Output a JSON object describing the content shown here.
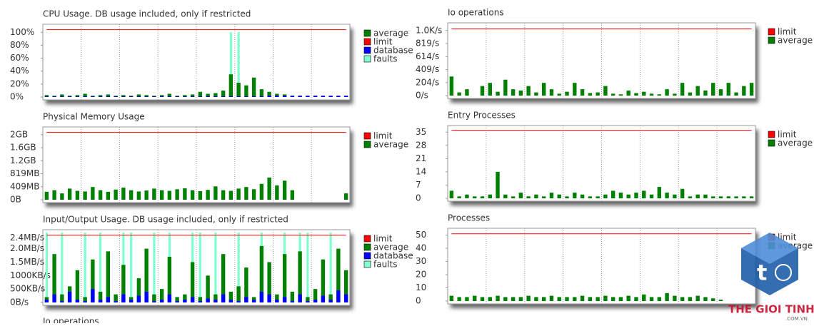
{
  "chart_data": [
    {
      "type": "bar",
      "title": "CPU Usage. DB usage included, only if restricted",
      "ylim": [
        0,
        108
      ],
      "yticks": [
        {
          "value": 0,
          "label": "0%"
        },
        {
          "value": 20,
          "label": "20%"
        },
        {
          "value": 40,
          "label": "40%"
        },
        {
          "value": 60,
          "label": "60%"
        },
        {
          "value": 80,
          "label": "80%"
        },
        {
          "value": 100,
          "label": "100%"
        }
      ],
      "grid": true,
      "series": [
        {
          "name": "average",
          "color": "#008000",
          "kind": "bar",
          "values": [
            3,
            2,
            4,
            2,
            3,
            5,
            2,
            3,
            4,
            2,
            3,
            2,
            4,
            3,
            2,
            3,
            5,
            2,
            3,
            4,
            8,
            5,
            6,
            10,
            35,
            22,
            18,
            30,
            12,
            8,
            5,
            4,
            2,
            2,
            1,
            2,
            1,
            1,
            1,
            1
          ]
        },
        {
          "name": "limit",
          "color": "#ff0000",
          "kind": "line",
          "values": [
            104,
            104,
            104,
            104,
            104,
            104,
            104,
            104,
            104,
            104,
            104,
            104,
            104,
            104,
            104,
            104,
            104,
            104,
            104,
            104,
            104,
            104,
            104,
            104,
            104,
            104,
            104,
            104,
            104,
            104,
            104,
            104,
            104,
            104,
            104,
            104,
            104,
            104,
            104,
            104
          ]
        },
        {
          "name": "database",
          "color": "#0000ff",
          "kind": "bar",
          "values": [
            1,
            1,
            1,
            1,
            1,
            1,
            1,
            1,
            1,
            1,
            1,
            1,
            1,
            1,
            1,
            1,
            1,
            1,
            1,
            1,
            1,
            1,
            1,
            1,
            1,
            1,
            1,
            1,
            1,
            2,
            2,
            2,
            2,
            2,
            2,
            2,
            2,
            2,
            2,
            2
          ]
        },
        {
          "name": "faults",
          "color": "#80ffd0",
          "kind": "spike",
          "values": [
            0,
            0,
            0,
            0,
            0,
            0,
            0,
            0,
            0,
            0,
            0,
            0,
            0,
            0,
            0,
            0,
            0,
            0,
            0,
            0,
            0,
            0,
            0,
            0,
            100,
            100,
            0,
            0,
            0,
            0,
            0,
            0,
            0,
            0,
            0,
            0,
            0,
            0,
            0,
            0
          ]
        }
      ]
    },
    {
      "type": "bar",
      "title": "Physical Memory Usage",
      "ylim": [
        0,
        2200
      ],
      "yticks": [
        {
          "value": 0,
          "label": "0B"
        },
        {
          "value": 409,
          "label": "409MB"
        },
        {
          "value": 819,
          "label": "819MB"
        },
        {
          "value": 1228,
          "label": "1.2GB"
        },
        {
          "value": 1638,
          "label": "1.6GB"
        },
        {
          "value": 2048,
          "label": "2GB"
        }
      ],
      "grid": true,
      "series": [
        {
          "name": "limit",
          "color": "#ff0000",
          "kind": "line",
          "values": [
            2120,
            2120,
            2120,
            2120,
            2120,
            2120,
            2120,
            2120,
            2120,
            2120,
            2120,
            2120,
            2120,
            2120,
            2120,
            2120,
            2120,
            2120,
            2120,
            2120,
            2120,
            2120,
            2120,
            2120,
            2120,
            2120,
            2120,
            2120,
            2120,
            2120,
            2120,
            2120,
            2120,
            2120,
            2120,
            2120,
            2120,
            2120,
            2120,
            2120
          ]
        },
        {
          "name": "average",
          "color": "#008000",
          "kind": "bar",
          "values": [
            250,
            300,
            200,
            350,
            280,
            260,
            400,
            300,
            250,
            320,
            380,
            300,
            260,
            290,
            350,
            300,
            280,
            330,
            360,
            300,
            270,
            310,
            420,
            300,
            280,
            350,
            400,
            330,
            500,
            700,
            450,
            600,
            300,
            0,
            0,
            0,
            0,
            0,
            0,
            200
          ]
        }
      ]
    },
    {
      "type": "bar",
      "title": "Input/Output Usage. DB usage included, only if restricted",
      "ylim": [
        0,
        2600
      ],
      "yticks": [
        {
          "value": 0,
          "label": "0B/s"
        },
        {
          "value": 500,
          "label": "500KB/s"
        },
        {
          "value": 1000,
          "label": "1000KB/s"
        },
        {
          "value": 1500,
          "label": "1.5MB/s"
        },
        {
          "value": 2000,
          "label": "2.0MB/s"
        },
        {
          "value": 2400,
          "label": "2.4MB/s"
        }
      ],
      "grid": true,
      "series": [
        {
          "name": "limit",
          "color": "#ff0000",
          "kind": "line",
          "values": [
            2500,
            2500,
            2500,
            2500,
            2500,
            2500,
            2500,
            2500,
            2500,
            2500,
            2500,
            2500,
            2500,
            2500,
            2500,
            2500,
            2500,
            2500,
            2500,
            2500,
            2500,
            2500,
            2500,
            2500,
            2500,
            2500,
            2500,
            2500,
            2500,
            2500,
            2500,
            2500,
            2500,
            2500,
            2500,
            2500,
            2500,
            2500,
            2500,
            2500
          ]
        },
        {
          "name": "average",
          "color": "#008000",
          "kind": "bar",
          "values": [
            200,
            1800,
            300,
            600,
            1200,
            200,
            1600,
            400,
            1900,
            300,
            1400,
            200,
            900,
            2000,
            300,
            500,
            1700,
            200,
            300,
            1500,
            200,
            1000,
            300,
            1800,
            400,
            600,
            1300,
            200,
            2100,
            1500,
            300,
            1800,
            400,
            1900,
            200,
            500,
            1600,
            300,
            2000,
            1200
          ]
        },
        {
          "name": "database",
          "color": "#0000ff",
          "kind": "bar",
          "values": [
            100,
            300,
            50,
            400,
            100,
            50,
            500,
            100,
            200,
            50,
            300,
            100,
            250,
            400,
            50,
            100,
            300,
            50,
            100,
            200,
            50,
            150,
            100,
            300,
            100,
            50,
            200,
            100,
            400,
            300,
            100,
            200,
            50,
            300,
            50,
            100,
            250,
            100,
            450,
            300
          ]
        },
        {
          "name": "faults",
          "color": "#80ffd0",
          "kind": "spike",
          "values": [
            2600,
            0,
            2600,
            0,
            0,
            2600,
            0,
            2600,
            0,
            0,
            2600,
            2600,
            0,
            0,
            2600,
            0,
            2600,
            0,
            0,
            2600,
            2600,
            0,
            2600,
            0,
            0,
            2600,
            0,
            0,
            2600,
            0,
            0,
            2600,
            0,
            2600,
            2600,
            0,
            0,
            2600,
            0,
            0
          ]
        }
      ]
    },
    {
      "type": "bar",
      "title": "Io operations",
      "ylim": [
        0,
        1100
      ],
      "yticks": [
        {
          "value": 0,
          "label": "0/s"
        },
        {
          "value": 204,
          "label": "204/s"
        },
        {
          "value": 409,
          "label": "409/s"
        },
        {
          "value": 614,
          "label": "614/s"
        },
        {
          "value": 819,
          "label": "819/s"
        },
        {
          "value": 1024,
          "label": "1.0K/s"
        }
      ],
      "grid": true,
      "series": [
        {
          "name": "limit",
          "color": "#ff0000",
          "kind": "line",
          "values": [
            1050,
            1050,
            1050,
            1050,
            1050,
            1050,
            1050,
            1050,
            1050,
            1050,
            1050,
            1050,
            1050,
            1050,
            1050,
            1050,
            1050,
            1050,
            1050,
            1050,
            1050,
            1050,
            1050,
            1050,
            1050,
            1050,
            1050,
            1050,
            1050,
            1050,
            1050,
            1050,
            1050,
            1050,
            1050,
            1050,
            1050,
            1050,
            1050,
            1050
          ]
        },
        {
          "name": "average",
          "color": "#008000",
          "kind": "bar",
          "values": [
            300,
            50,
            100,
            0,
            150,
            200,
            60,
            250,
            100,
            80,
            150,
            50,
            200,
            100,
            30,
            60,
            200,
            100,
            40,
            50,
            150,
            30,
            20,
            80,
            40,
            60,
            30,
            20,
            100,
            30,
            200,
            50,
            150,
            80,
            200,
            100,
            200,
            50,
            150,
            200
          ]
        }
      ]
    },
    {
      "type": "bar",
      "title": "Entry Processes",
      "ylim": [
        0,
        37
      ],
      "yticks": [
        0,
        7,
        14,
        21,
        28,
        35
      ],
      "grid": true,
      "series": [
        {
          "name": "limit",
          "color": "#ff0000",
          "kind": "line",
          "values": [
            36,
            36,
            36,
            36,
            36,
            36,
            36,
            36,
            36,
            36,
            36,
            36,
            36,
            36,
            36,
            36,
            36,
            36,
            36,
            36,
            36,
            36,
            36,
            36,
            36,
            36,
            36,
            36,
            36,
            36,
            36,
            36,
            36,
            36,
            36,
            36,
            36,
            36,
            36,
            36
          ]
        },
        {
          "name": "average",
          "color": "#008000",
          "kind": "bar",
          "values": [
            4,
            1,
            2,
            1,
            1,
            2,
            14,
            2,
            1,
            3,
            1,
            2,
            1,
            3,
            2,
            1,
            3,
            2,
            1,
            1,
            2,
            4,
            3,
            2,
            3,
            4,
            2,
            6,
            3,
            2,
            5,
            1,
            2,
            2,
            1,
            1,
            1,
            1,
            1,
            1
          ]
        }
      ]
    },
    {
      "type": "bar",
      "title": "Processes",
      "ylim": [
        0,
        53
      ],
      "yticks": [
        0,
        10,
        20,
        30,
        40,
        50
      ],
      "grid": true,
      "series": [
        {
          "name": "limit",
          "color": "#ff0000",
          "kind": "line",
          "values": [
            51,
            51,
            51,
            51,
            51,
            51,
            51,
            51,
            51,
            51,
            51,
            51,
            51,
            51,
            51,
            51,
            51,
            51,
            51,
            51,
            51,
            51,
            51,
            51,
            51,
            51,
            51,
            51,
            51,
            51,
            51,
            51,
            51,
            51,
            51,
            51,
            51,
            51,
            51,
            51
          ]
        },
        {
          "name": "average",
          "color": "#008000",
          "kind": "bar",
          "values": [
            4,
            3,
            3,
            4,
            3,
            3,
            4,
            3,
            3,
            3,
            4,
            3,
            3,
            4,
            3,
            3,
            3,
            4,
            3,
            3,
            4,
            3,
            3,
            4,
            3,
            5,
            3,
            3,
            6,
            4,
            3,
            3,
            4,
            3,
            2,
            1,
            0,
            0,
            0,
            0
          ]
        }
      ]
    }
  ],
  "next_title": "Io operations",
  "watermark": {
    "text": "THE GIOI TINHOC",
    "sub": ".COM.VN"
  }
}
